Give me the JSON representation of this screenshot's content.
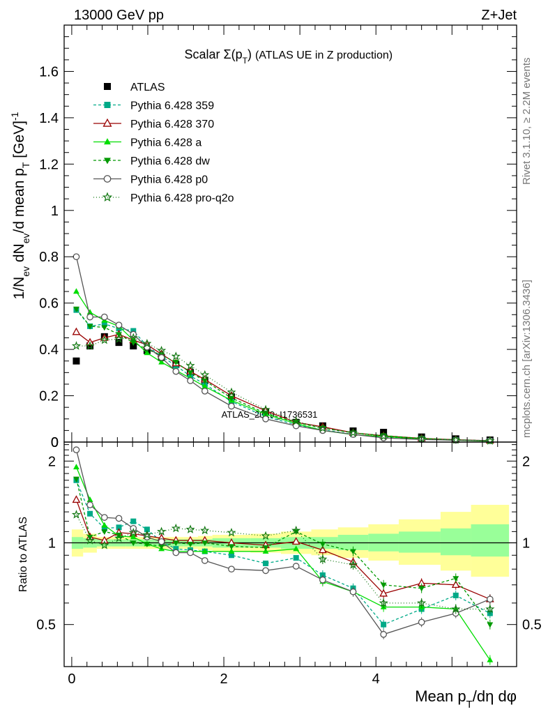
{
  "header": {
    "left": "13000 GeV pp",
    "right": "Z+Jet"
  },
  "side_labels": {
    "rivet": "Rivet 3.1.10, ≥ 2.2M events",
    "mcplots": "mcplots.cern.ch [arXiv:1306.3436]"
  },
  "chart_data": [
    {
      "type": "line",
      "title": "Scalar Σ(p_T) (ATLAS UE in Z production)",
      "ylabel": "1/N_ev dN_ev/d mean p_T [GeV]^-1",
      "xlim": [
        -0.1,
        5.85
      ],
      "ylim": [
        0,
        1.8
      ],
      "yticks": [
        "0",
        "0.2",
        "0.4",
        "0.6",
        "0.8",
        "1",
        "1.2",
        "1.4",
        "1.6"
      ],
      "watermark": "ATLAS_2019_I1736531",
      "legend_position": "top-left",
      "x": [
        0.06,
        0.24,
        0.43,
        0.62,
        0.81,
        0.99,
        1.18,
        1.37,
        1.56,
        1.75,
        2.1,
        2.55,
        2.95,
        3.3,
        3.7,
        4.1,
        4.6,
        5.05,
        5.5
      ],
      "series": [
        {
          "name": "ATLAS",
          "color": "#000000",
          "marker": "square",
          "dash": "none",
          "values": [
            0.35,
            0.415,
            0.455,
            0.43,
            0.415,
            0.395,
            0.365,
            0.335,
            0.3,
            0.265,
            0.195,
            0.13,
            0.085,
            0.07,
            0.048,
            0.042,
            0.022,
            0.014,
            0.009
          ]
        },
        {
          "name": "Pythia 6.428 359",
          "color": "#00aa88",
          "marker": "square",
          "dash": "4,3",
          "values": [
            0.57,
            0.5,
            0.51,
            0.49,
            0.48,
            0.415,
            0.37,
            0.33,
            0.285,
            0.25,
            0.175,
            0.11,
            0.075,
            0.053,
            0.033,
            0.022,
            0.015,
            0.009,
            0.006
          ]
        },
        {
          "name": "Pythia 6.428 370",
          "color": "#990000",
          "marker": "triangle-open",
          "dash": "none",
          "values": [
            0.475,
            0.43,
            0.45,
            0.465,
            0.44,
            0.42,
            0.38,
            0.34,
            0.305,
            0.27,
            0.2,
            0.135,
            0.085,
            0.066,
            0.04,
            0.027,
            0.016,
            0.01,
            0.006
          ]
        },
        {
          "name": "Pythia 6.428 a",
          "color": "#00dd00",
          "marker": "triangle",
          "dash": "none",
          "values": [
            0.65,
            0.56,
            0.525,
            0.5,
            0.44,
            0.385,
            0.345,
            0.31,
            0.275,
            0.24,
            0.18,
            0.12,
            0.08,
            0.05,
            0.032,
            0.024,
            0.013,
            0.008,
            0.004
          ]
        },
        {
          "name": "Pythia 6.428 dw",
          "color": "#009900",
          "marker": "triangle-down",
          "dash": "4,3",
          "values": [
            0.575,
            0.5,
            0.495,
            0.465,
            0.43,
            0.4,
            0.375,
            0.345,
            0.3,
            0.265,
            0.19,
            0.125,
            0.085,
            0.06,
            0.04,
            0.028,
            0.016,
            0.01,
            0.006
          ]
        },
        {
          "name": "Pythia 6.428 p0",
          "color": "#555555",
          "marker": "circle-open",
          "dash": "none",
          "values": [
            0.8,
            0.54,
            0.54,
            0.505,
            0.465,
            0.41,
            0.365,
            0.305,
            0.265,
            0.22,
            0.155,
            0.1,
            0.07,
            0.05,
            0.033,
            0.018,
            0.011,
            0.008,
            0.006
          ]
        },
        {
          "name": "Pythia 6.428 pro-q2o",
          "color": "#117711",
          "marker": "star",
          "dash": "1,3",
          "values": [
            0.415,
            0.415,
            0.44,
            0.445,
            0.45,
            0.425,
            0.395,
            0.37,
            0.33,
            0.29,
            0.215,
            0.14,
            0.09,
            0.06,
            0.04,
            0.025,
            0.014,
            0.009,
            0.005
          ]
        }
      ]
    },
    {
      "type": "line",
      "xlabel": "Mean p_T/dη dφ",
      "ylabel": "Ratio to ATLAS",
      "xlim": [
        -0.1,
        5.85
      ],
      "ylim": [
        0.35,
        2.35
      ],
      "xticks": [
        "0",
        "2",
        "4"
      ],
      "yticks": [
        "0.5",
        "1",
        "2"
      ],
      "bands": {
        "x_edges": [
          0,
          0.15,
          0.33,
          0.52,
          0.71,
          0.9,
          1.09,
          1.28,
          1.47,
          1.66,
          1.85,
          2.35,
          2.75,
          3.15,
          3.5,
          3.9,
          4.3,
          4.85,
          5.25,
          5.75
        ],
        "inner_color": "#99ff99",
        "outer_color": "#ffff99",
        "inner_lo": [
          0.95,
          0.96,
          0.97,
          0.97,
          0.97,
          0.97,
          0.97,
          0.97,
          0.97,
          0.97,
          0.96,
          0.96,
          0.95,
          0.95,
          0.94,
          0.93,
          0.92,
          0.9,
          0.89
        ],
        "inner_hi": [
          1.05,
          1.04,
          1.03,
          1.03,
          1.03,
          1.03,
          1.03,
          1.03,
          1.03,
          1.03,
          1.04,
          1.04,
          1.05,
          1.05,
          1.07,
          1.08,
          1.1,
          1.13,
          1.17
        ],
        "outer_lo": [
          0.89,
          0.92,
          0.95,
          0.95,
          0.95,
          0.95,
          0.95,
          0.95,
          0.95,
          0.94,
          0.93,
          0.92,
          0.91,
          0.9,
          0.88,
          0.86,
          0.83,
          0.79,
          0.75
        ],
        "outer_hi": [
          1.12,
          1.08,
          1.05,
          1.05,
          1.05,
          1.05,
          1.05,
          1.05,
          1.05,
          1.06,
          1.07,
          1.08,
          1.1,
          1.12,
          1.14,
          1.17,
          1.22,
          1.3,
          1.38
        ]
      },
      "series": [
        {
          "name": "Pythia 6.428 359",
          "values": [
            1.7,
            1.28,
            1.13,
            1.14,
            1.2,
            1.12,
            1.01,
            0.95,
            0.94,
            0.93,
            0.9,
            0.84,
            0.88,
            0.76,
            0.68,
            0.5,
            0.57,
            0.64,
            0.55
          ]
        },
        {
          "name": "Pythia 6.428 370",
          "values": [
            1.44,
            1.05,
            1.02,
            1.09,
            1.08,
            1.06,
            1.04,
            1.02,
            1.02,
            1.02,
            1.0,
            0.98,
            1.01,
            0.94,
            0.85,
            0.65,
            0.71,
            0.7,
            0.62
          ]
        },
        {
          "name": "Pythia 6.428 a",
          "values": [
            1.9,
            1.44,
            1.16,
            1.06,
            1.05,
            0.99,
            0.95,
            0.93,
            0.93,
            0.93,
            0.93,
            0.93,
            0.95,
            0.72,
            0.66,
            0.58,
            0.58,
            0.57,
            0.37
          ]
        },
        {
          "name": "Pythia 6.428 dw",
          "values": [
            1.72,
            1.05,
            1.1,
            1.07,
            1.0,
            0.99,
            0.97,
            1.0,
            0.99,
            1.0,
            0.97,
            0.96,
            1.1,
            0.99,
            0.93,
            0.7,
            0.68,
            0.74,
            0.5
          ]
        },
        {
          "name": "Pythia 6.428 p0",
          "values": [
            2.2,
            1.38,
            1.24,
            1.23,
            1.13,
            1.05,
            1.01,
            0.92,
            0.92,
            0.86,
            0.8,
            0.79,
            0.82,
            0.73,
            0.66,
            0.46,
            0.51,
            0.55,
            0.62
          ]
        },
        {
          "name": "Pythia 6.428 pro-q2o",
          "values": [
            1.27,
            1.02,
            0.98,
            1.04,
            1.09,
            1.07,
            1.1,
            1.13,
            1.12,
            1.11,
            1.09,
            1.06,
            1.11,
            0.87,
            0.83,
            0.6,
            0.6,
            0.57,
            0.57
          ]
        }
      ]
    }
  ]
}
